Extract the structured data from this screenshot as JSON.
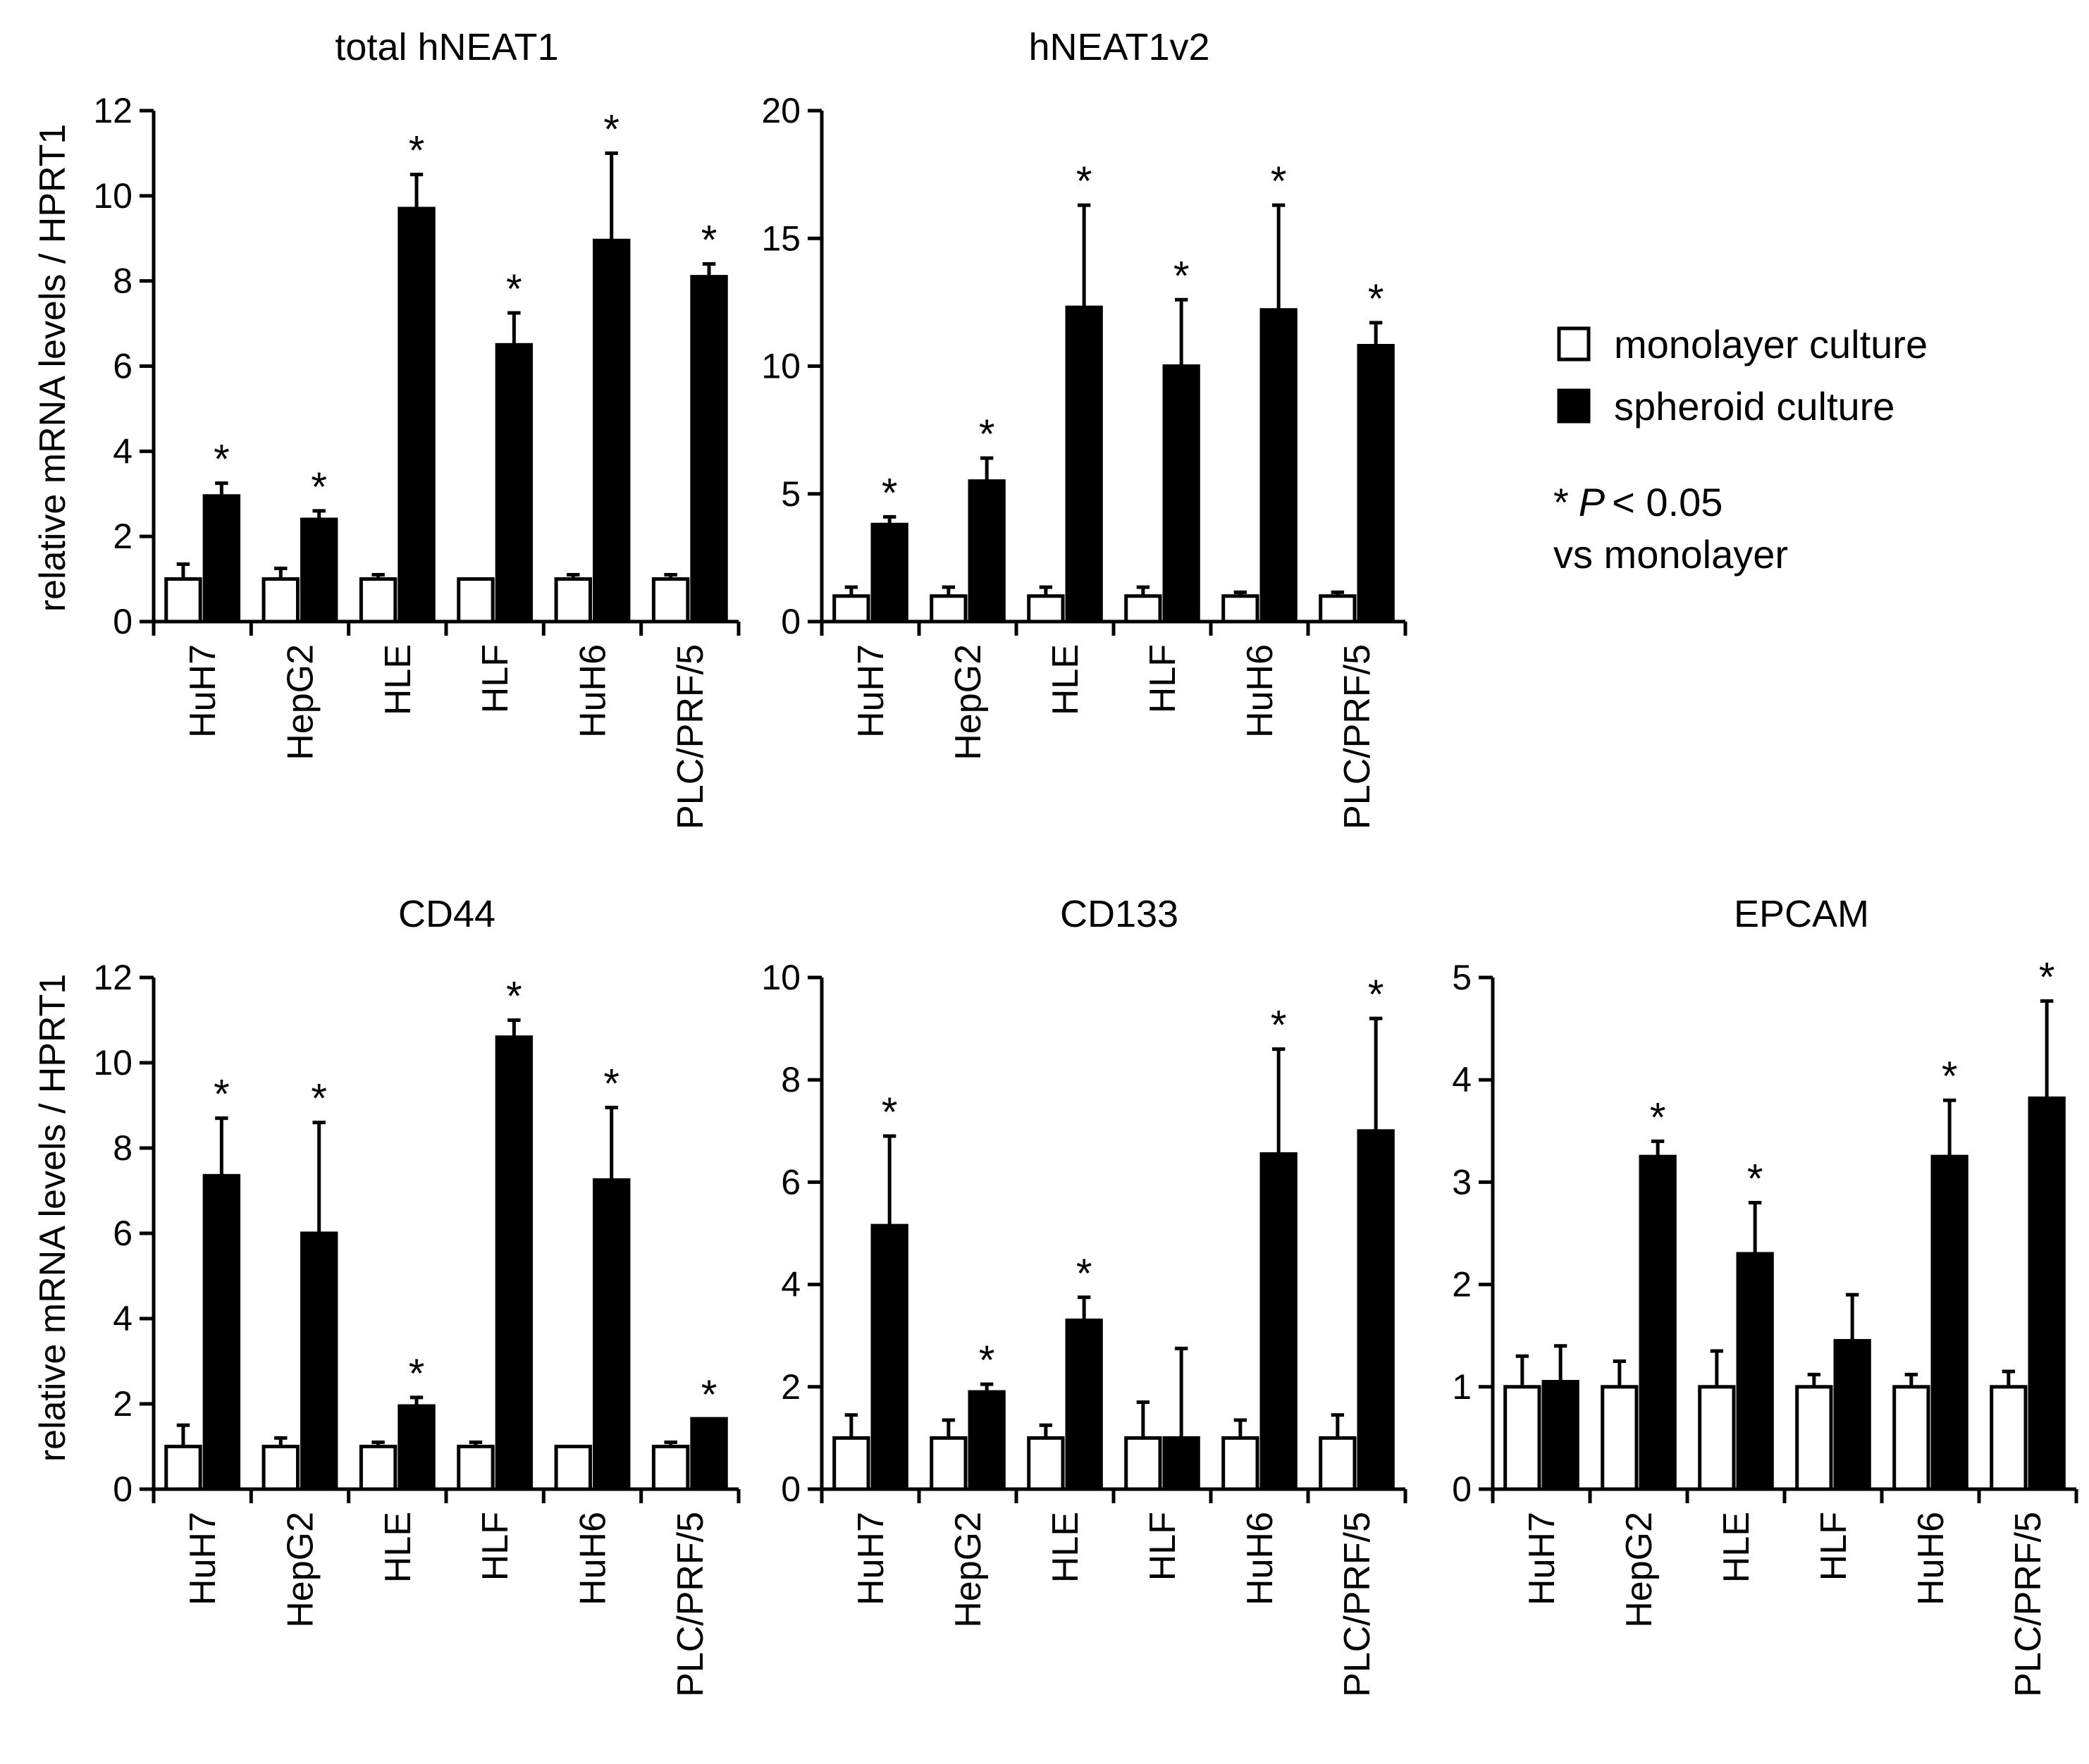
{
  "legend": {
    "monolayer_label": "monolayer culture",
    "spheroid_label": "spheroid culture",
    "monolayer_color": "#ffffff",
    "spheroid_color": "#000000",
    "sig_star": "*",
    "sig_p": "P",
    "sig_rest": "< 0.05",
    "sig_line2": "vs monolayer"
  },
  "ylabel": "relative mRNA levels / HPRT1",
  "chart_data": [
    {
      "type": "bar",
      "title": "total hNEAT1",
      "categories": [
        "HuH7",
        "HepG2",
        "HLE",
        "HLF",
        "HuH6",
        "PLC/PRF/5"
      ],
      "ylim": [
        0,
        12
      ],
      "yticks": [
        "0",
        "2",
        "4",
        "6",
        "8",
        "10",
        "12"
      ],
      "ylabel": "relative mRNA levels / HPRT1",
      "series": [
        {
          "name": "monolayer culture",
          "values": [
            1.0,
            1.0,
            1.0,
            1.0,
            1.0,
            1.0
          ],
          "errors": [
            0.35,
            0.25,
            0.1,
            0.0,
            0.1,
            0.1
          ]
        },
        {
          "name": "spheroid culture",
          "values": [
            2.95,
            2.4,
            9.7,
            6.5,
            8.95,
            8.1
          ],
          "errors": [
            0.3,
            0.2,
            0.8,
            0.75,
            2.05,
            0.3
          ]
        }
      ],
      "significant": [
        true,
        true,
        true,
        true,
        true,
        true
      ]
    },
    {
      "type": "bar",
      "title": "hNEAT1v2",
      "categories": [
        "HuH7",
        "HepG2",
        "HLE",
        "HLF",
        "HuH6",
        "PLC/PRF/5"
      ],
      "ylim": [
        0,
        20
      ],
      "yticks": [
        "0",
        "5",
        "10",
        "15",
        "20"
      ],
      "series": [
        {
          "name": "monolayer culture",
          "values": [
            1.0,
            1.0,
            1.0,
            1.0,
            1.0,
            1.0
          ],
          "errors": [
            0.35,
            0.35,
            0.35,
            0.35,
            0.15,
            0.15
          ]
        },
        {
          "name": "spheroid culture",
          "values": [
            3.8,
            5.5,
            12.3,
            10.0,
            12.2,
            10.8
          ],
          "errors": [
            0.3,
            0.9,
            4.0,
            2.6,
            4.1,
            0.9
          ]
        }
      ],
      "significant": [
        true,
        true,
        true,
        true,
        true,
        true
      ]
    },
    {
      "type": "bar",
      "title": "CD44",
      "categories": [
        "HuH7",
        "HepG2",
        "HLE",
        "HLF",
        "HuH6",
        "PLC/PRF/5"
      ],
      "ylim": [
        0,
        12
      ],
      "yticks": [
        "0",
        "2",
        "4",
        "6",
        "8",
        "10",
        "12"
      ],
      "ylabel": "relative mRNA levels / HPRT1",
      "series": [
        {
          "name": "monolayer culture",
          "values": [
            1.0,
            1.0,
            1.0,
            1.0,
            1.0,
            1.0
          ],
          "errors": [
            0.5,
            0.2,
            0.1,
            0.1,
            0.0,
            0.1
          ]
        },
        {
          "name": "spheroid culture",
          "values": [
            7.35,
            6.0,
            1.95,
            10.6,
            7.25,
            1.65
          ],
          "errors": [
            1.35,
            2.6,
            0.2,
            0.4,
            1.7,
            0.0
          ]
        }
      ],
      "significant": [
        true,
        true,
        true,
        true,
        true,
        true
      ]
    },
    {
      "type": "bar",
      "title": "CD133",
      "categories": [
        "HuH7",
        "HepG2",
        "HLE",
        "HLF",
        "HuH6",
        "PLC/PRF/5"
      ],
      "ylim": [
        0,
        10
      ],
      "yticks": [
        "0",
        "2",
        "4",
        "6",
        "8",
        "10"
      ],
      "series": [
        {
          "name": "monolayer culture",
          "values": [
            1.0,
            1.0,
            1.0,
            1.0,
            1.0,
            1.0
          ],
          "errors": [
            0.45,
            0.35,
            0.25,
            0.7,
            0.35,
            0.45
          ]
        },
        {
          "name": "spheroid culture",
          "values": [
            5.15,
            1.9,
            3.3,
            1.0,
            6.55,
            7.0
          ],
          "errors": [
            1.75,
            0.15,
            0.45,
            1.75,
            2.05,
            2.2
          ]
        }
      ],
      "significant": [
        true,
        true,
        true,
        false,
        true,
        true
      ]
    },
    {
      "type": "bar",
      "title": "EPCAM",
      "categories": [
        "HuH7",
        "HepG2",
        "HLE",
        "HLF",
        "HuH6",
        "PLC/PRF/5"
      ],
      "ylim": [
        0,
        5
      ],
      "yticks": [
        "0",
        "1",
        "2",
        "3",
        "4",
        "5"
      ],
      "series": [
        {
          "name": "monolayer culture",
          "values": [
            1.0,
            1.0,
            1.0,
            1.0,
            1.0,
            1.0
          ],
          "errors": [
            0.3,
            0.25,
            0.35,
            0.12,
            0.12,
            0.15
          ]
        },
        {
          "name": "spheroid culture",
          "values": [
            1.05,
            3.25,
            2.3,
            1.45,
            3.25,
            3.82
          ],
          "errors": [
            0.35,
            0.15,
            0.5,
            0.45,
            0.55,
            0.95
          ]
        }
      ],
      "significant": [
        false,
        true,
        true,
        false,
        true,
        true
      ]
    }
  ]
}
